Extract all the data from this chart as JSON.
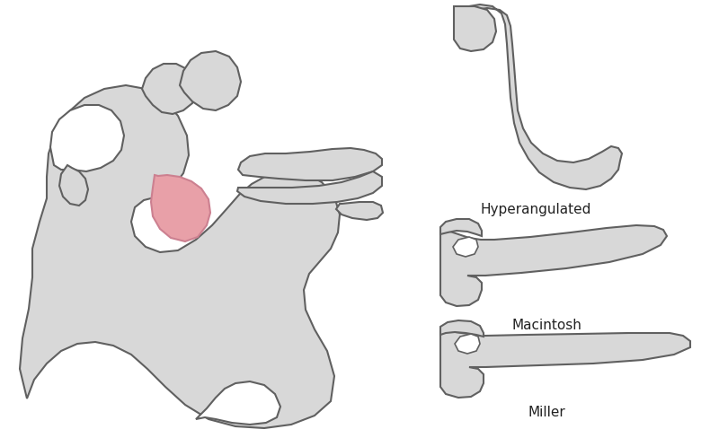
{
  "background_color": "#ffffff",
  "fill_color": "#d8d8d8",
  "outline_color": "#606060",
  "tongue_fill": "#e8a0a8",
  "tongue_outline": "#cc8090",
  "label_hyperangulated": "Hyperangulated",
  "label_macintosh": "Macintosh",
  "label_miller": "Miller",
  "label_fontsize": 11,
  "fig_width": 8.0,
  "fig_height": 4.89
}
